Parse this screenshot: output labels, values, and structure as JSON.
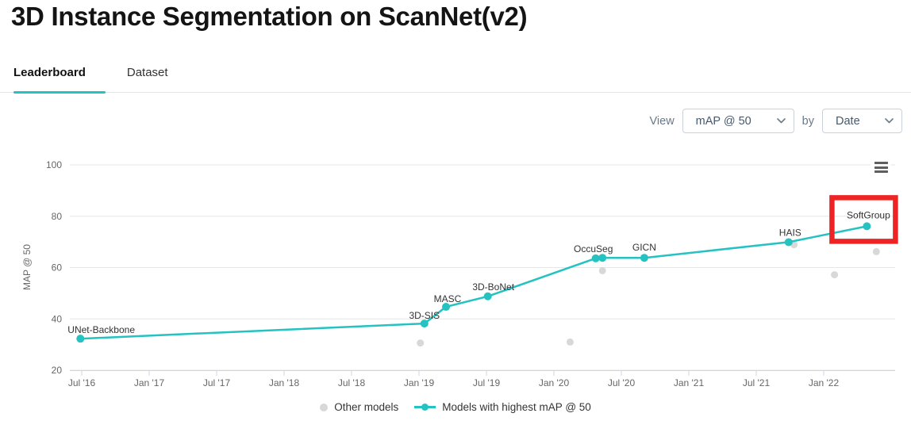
{
  "page": {
    "title": "3D Instance Segmentation on ScanNet(v2)"
  },
  "tabs": [
    {
      "label": "Leaderboard",
      "active": true
    },
    {
      "label": "Dataset",
      "active": false
    }
  ],
  "controls": {
    "view_label": "View",
    "metric_select": "mAP @ 50",
    "by_label": "by",
    "sort_select": "Date"
  },
  "chart_data": {
    "type": "line",
    "ylabel": "MAP @ 50",
    "y_ticks": [
      20,
      40,
      60,
      80,
      100
    ],
    "ylim": [
      20,
      105
    ],
    "x_ticks": [
      "Jul '16",
      "Jan '17",
      "Jul '17",
      "Jan '18",
      "Jul '18",
      "Jan '19",
      "Jul '19",
      "Jan '20",
      "Jul '20",
      "Jan '21",
      "Jul '21",
      "Jan '22"
    ],
    "x_tick_start_year": 2016.5,
    "x_tick_step_years": 0.5,
    "grid": "horizontal-only",
    "legend_position": "bottom-center",
    "colors": {
      "line": "#25c2c2",
      "other": "#d8d8d8",
      "gridline": "#e6e6e6",
      "axis": "#ccd6eb",
      "tick_text": "#666666",
      "point_label": "#333333",
      "highlight": "#ee2424"
    },
    "series": [
      {
        "name": "Other models",
        "style": "scatter",
        "color": "#d8d8d8",
        "points": [
          {
            "x": 2019.01,
            "y": 30.6
          },
          {
            "x": 2020.12,
            "y": 31.0
          },
          {
            "x": 2020.36,
            "y": 58.8
          },
          {
            "x": 2021.78,
            "y": 68.9
          },
          {
            "x": 2022.08,
            "y": 57.2
          },
          {
            "x": 2022.39,
            "y": 66.2
          }
        ]
      },
      {
        "name": "Models with highest mAP @ 50",
        "style": "line-dot",
        "color": "#25c2c2",
        "points": [
          {
            "x": 2016.49,
            "y": 32.3,
            "label": "UNet-Backbone"
          },
          {
            "x": 2019.04,
            "y": 38.2,
            "label": "3D-SIS"
          },
          {
            "x": 2019.2,
            "y": 44.7,
            "label": "MASC"
          },
          {
            "x": 2019.51,
            "y": 48.8,
            "label": "3D-BoNet"
          },
          {
            "x": 2020.31,
            "y": 63.6,
            "label": "OccuSeg"
          },
          {
            "x": 2020.36,
            "y": 63.8
          },
          {
            "x": 2020.67,
            "y": 63.8,
            "label": "GICN"
          },
          {
            "x": 2021.74,
            "y": 69.9,
            "label": "HAIS"
          },
          {
            "x": 2022.32,
            "y": 76.1,
            "label": "SoftGroup"
          }
        ]
      }
    ],
    "highlight_box": {
      "target": "SoftGroup",
      "color": "#ee2424"
    }
  },
  "legend": [
    {
      "label": "Other models",
      "marker": "dot",
      "color": "#d8d8d8"
    },
    {
      "label": "Models with highest mAP @ 50",
      "marker": "line-dot",
      "color": "#25c2c2"
    }
  ],
  "menu_icon": {
    "name": "hamburger-icon",
    "color": "#5f5f5f"
  }
}
